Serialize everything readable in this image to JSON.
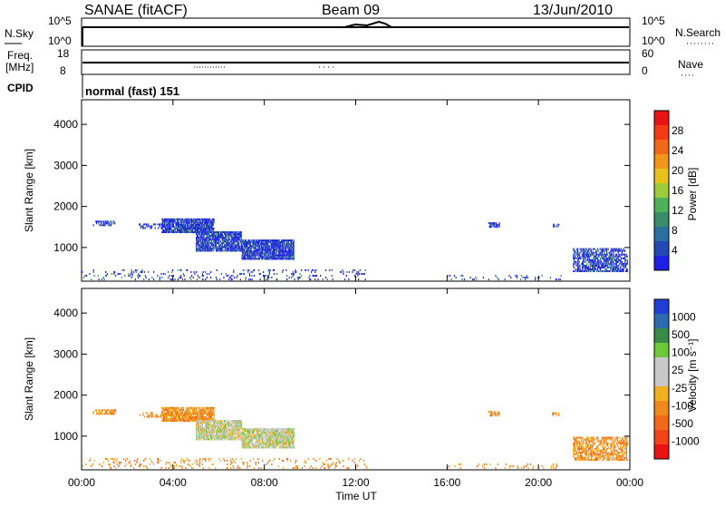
{
  "header": {
    "station": "SANAE (fitACF)",
    "beam": "Beam 09",
    "date": "13/Jun/2010"
  },
  "top_panels": {
    "nsky_label": "N.Sky",
    "nsearch_label": "N.Search",
    "count_ticks": [
      "10^5",
      "10^0"
    ],
    "freq_label_1": "Freq.",
    "freq_label_2": "[MHz]",
    "freq_ticks": [
      "18",
      "8"
    ],
    "nave_label": "Nave",
    "nave_ticks": [
      "60",
      "0"
    ],
    "cpid_label": "CPID",
    "cpid_text": "normal (fast) 151"
  },
  "chart_data": [
    {
      "type": "heatmap",
      "name": "power",
      "ylabel": "Slant Range [km]",
      "xlabel": "",
      "xlim": [
        "00:00",
        "24:00"
      ],
      "ylim": [
        180,
        4600
      ],
      "x_ticks": [
        "00:00",
        "04:00",
        "08:00",
        "12:00",
        "16:00",
        "20:00",
        "00:00"
      ],
      "y_ticks": [
        1000,
        2000,
        3000,
        4000
      ],
      "colorbar": {
        "label": "Power [dB]",
        "ticks": [
          "4",
          "8",
          "12",
          "16",
          "20",
          "24",
          "28"
        ],
        "colors": [
          "#1f1fe6",
          "#2349b5",
          "#2a6fa0",
          "#3a8c6a",
          "#4fb05a",
          "#9ecb3a",
          "#e8c21a",
          "#f0961a",
          "#f06818",
          "#f23a14",
          "#e81414"
        ]
      }
    },
    {
      "type": "heatmap",
      "name": "velocity",
      "ylabel": "Slant Range [km]",
      "xlabel": "Time UT",
      "xlim": [
        "00:00",
        "24:00"
      ],
      "ylim": [
        180,
        4600
      ],
      "x_ticks": [
        "00:00",
        "04:00",
        "08:00",
        "12:00",
        "16:00",
        "20:00",
        "00:00"
      ],
      "y_ticks": [
        1000,
        2000,
        3000,
        4000
      ],
      "colorbar": {
        "label": "Velocity [m s⁻¹]",
        "ticks": [
          "1000",
          "500",
          "100",
          "25",
          "-25",
          "-100",
          "-500",
          "-1000"
        ],
        "colors": [
          "#1f3fd6",
          "#2c6bb0",
          "#3a8a4a",
          "#6fc83a",
          "#c8c8c8",
          "#c8c8c8",
          "#f0b020",
          "#f08a1c",
          "#f06a1a",
          "#f2441a",
          "#e81414"
        ]
      }
    }
  ]
}
